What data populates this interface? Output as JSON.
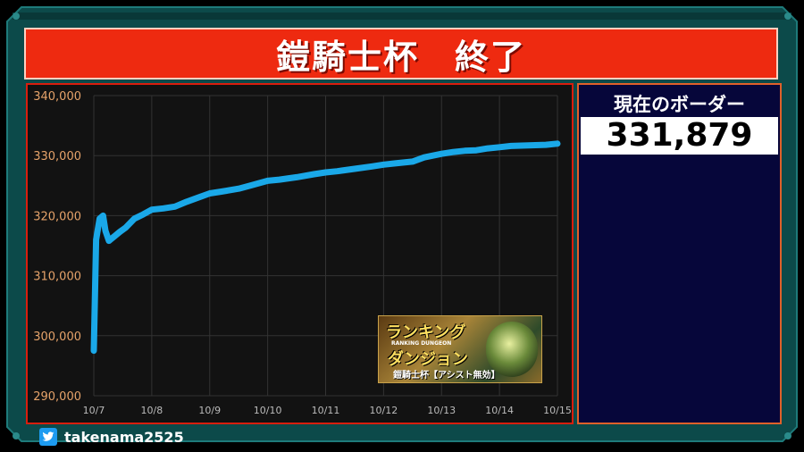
{
  "title": "鎧騎士杯　終了",
  "border_panel": {
    "label": "現在のボーダー",
    "value": "331,879"
  },
  "footer": {
    "handle": "takenama2525",
    "icon": "twitter-icon"
  },
  "badge": {
    "line1": "ランキング",
    "mini": "RANKING DUNGEON",
    "line2": "ダンジョン",
    "line3": "鎧騎士杯【アシスト無効】"
  },
  "colors": {
    "banner": "#ee2a10",
    "line": "#1aa8e8",
    "panel_right": "#06063a",
    "frame": "#0c4a4a"
  },
  "chart_data": {
    "type": "line",
    "title": "",
    "xlabel": "",
    "ylabel": "",
    "grid": true,
    "x_ticks": [
      "10/7",
      "10/8",
      "10/9",
      "10/10",
      "10/11",
      "10/12",
      "10/13",
      "10/14",
      "10/15"
    ],
    "y_ticks": [
      "290,000",
      "300,000",
      "310,000",
      "320,000",
      "330,000",
      "340,000"
    ],
    "ylim": [
      290000,
      340000
    ],
    "xlim": [
      0,
      8
    ],
    "x": [
      0.0,
      0.04,
      0.1,
      0.16,
      0.2,
      0.26,
      0.35,
      0.45,
      0.55,
      0.7,
      0.85,
      1.0,
      1.2,
      1.4,
      1.6,
      1.8,
      2.0,
      2.2,
      2.5,
      2.7,
      3.0,
      3.2,
      3.5,
      3.8,
      4.0,
      4.2,
      4.5,
      4.8,
      5.0,
      5.2,
      5.5,
      5.7,
      6.0,
      6.2,
      6.4,
      6.6,
      6.8,
      7.0,
      7.2,
      7.5,
      7.8,
      8.0
    ],
    "y": [
      297500,
      316000,
      319500,
      320000,
      317500,
      315800,
      316500,
      317300,
      318000,
      319500,
      320200,
      321000,
      321200,
      321500,
      322300,
      323000,
      323700,
      324000,
      324500,
      325000,
      325800,
      326000,
      326400,
      326900,
      327200,
      327400,
      327800,
      328200,
      328500,
      328700,
      329000,
      329700,
      330300,
      330600,
      330800,
      330900,
      331200,
      331400,
      331600,
      331700,
      331800,
      332000
    ]
  }
}
